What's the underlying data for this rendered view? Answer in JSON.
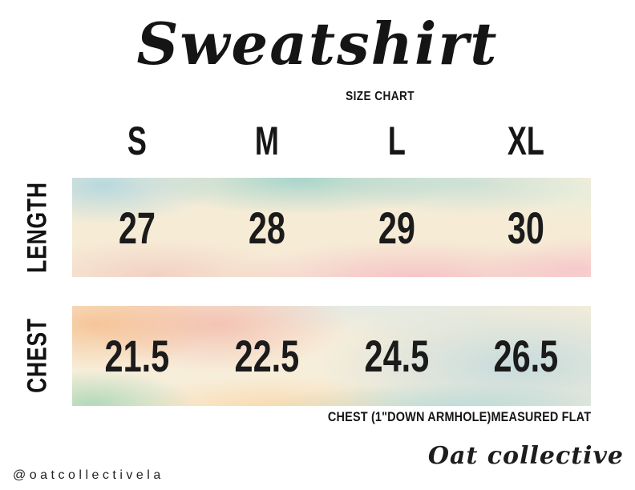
{
  "title": {
    "script": "Sweatshirt",
    "subtitle": "SIZE CHART"
  },
  "table": {
    "sizes": [
      "S",
      "M",
      "L",
      "XL"
    ],
    "rows": [
      {
        "label": "LENGTH",
        "values": [
          "27",
          "28",
          "29",
          "30"
        ]
      },
      {
        "label": "CHEST",
        "values": [
          "21.5",
          "22.5",
          "24.5",
          "26.5"
        ]
      }
    ],
    "note": "CHEST (1\"DOWN ARMHOLE)MEASURED FLAT"
  },
  "footer": {
    "handle": "@oatcollectivela",
    "brand": "Oat collective"
  },
  "chart_data": {
    "type": "table",
    "title": "Sweatshirt Size Chart",
    "columns": [
      "S",
      "M",
      "L",
      "XL"
    ],
    "rows": [
      {
        "label": "LENGTH",
        "values": [
          27,
          28,
          29,
          30
        ]
      },
      {
        "label": "CHEST",
        "values": [
          21.5,
          22.5,
          24.5,
          26.5
        ]
      }
    ],
    "note": "CHEST (1\"DOWN ARMHOLE)MEASURED FLAT"
  },
  "colors": {
    "ink": "#161616",
    "background": "#ffffff",
    "watercolor_cream": "#f6ecd6",
    "watercolor_blue": "#a8d4e1",
    "watercolor_teal": "#76c6c6",
    "watercolor_pink": "#f696b4",
    "watercolor_peach": "#f5a564",
    "watercolor_mint": "#76c69e"
  }
}
